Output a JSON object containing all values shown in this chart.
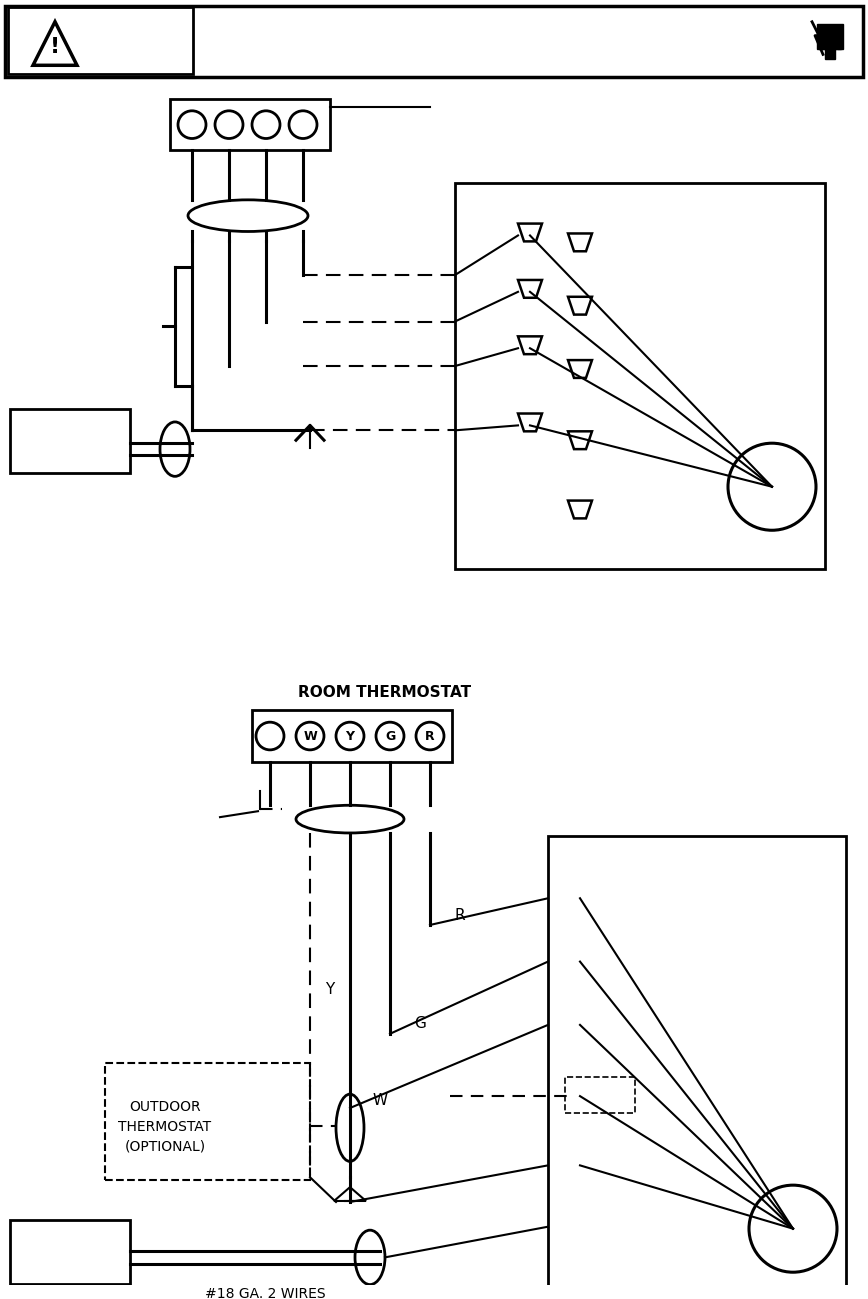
{
  "bg_color": "#ffffff",
  "line_color": "#000000",
  "fig_width": 8.68,
  "fig_height": 12.99,
  "room_thermostat_label": "ROOM THERMOSTAT",
  "outdoor_thermostat_label": "OUTDOOR\nTHERMOSTAT\n(OPTIONAL)",
  "wires_label": "#18 GA. 2 WIRES",
  "term_labels_bottom": [
    "",
    "W",
    "Y",
    "G",
    "R"
  ]
}
